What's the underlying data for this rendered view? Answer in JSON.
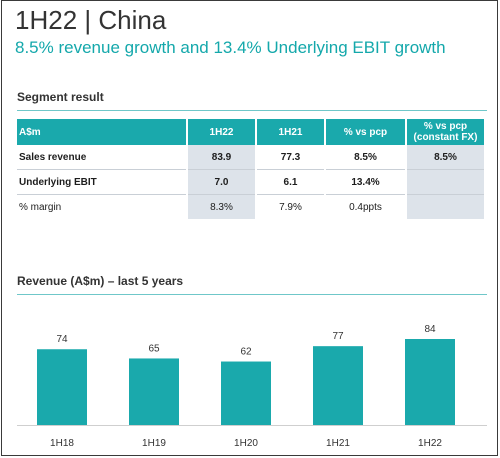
{
  "header": {
    "title": "1H22 | China",
    "subtitle": "8.5% revenue growth and 13.4% Underlying EBIT growth"
  },
  "segment": {
    "heading": "Segment result",
    "columns": [
      "A$m",
      "1H22",
      "1H21",
      "% vs pcp",
      "% vs pcp",
      "(constant FX)"
    ],
    "rows": [
      {
        "label": "Sales revenue",
        "h22": "83.9",
        "h21": "77.3",
        "vs_pcp": "8.5%",
        "vs_pcp_fx": "8.5%"
      },
      {
        "label": "Underlying EBIT",
        "h22": "7.0",
        "h21": "6.1",
        "vs_pcp": "13.4%",
        "vs_pcp_fx": ""
      },
      {
        "label": "% margin",
        "h22": "8.3%",
        "h21": "7.9%",
        "vs_pcp": "0.4ppts",
        "vs_pcp_fx": ""
      }
    ]
  },
  "revenue": {
    "heading": "Revenue (A$m) – last 5 years"
  },
  "colors": {
    "accent": "#1aa9ac",
    "title_text": "#333333",
    "shade": "#dde3ea"
  },
  "chart_data": {
    "type": "bar",
    "title": "Revenue (A$m) – last 5 years",
    "categories": [
      "1H18",
      "1H19",
      "1H20",
      "1H21",
      "1H22"
    ],
    "values": [
      74,
      65,
      62,
      77,
      84
    ],
    "xlabel": "",
    "ylabel": "",
    "ylim": [
      0,
      84
    ],
    "grid": false,
    "data_labels": [
      "74",
      "65",
      "62",
      "77",
      "84"
    ]
  }
}
